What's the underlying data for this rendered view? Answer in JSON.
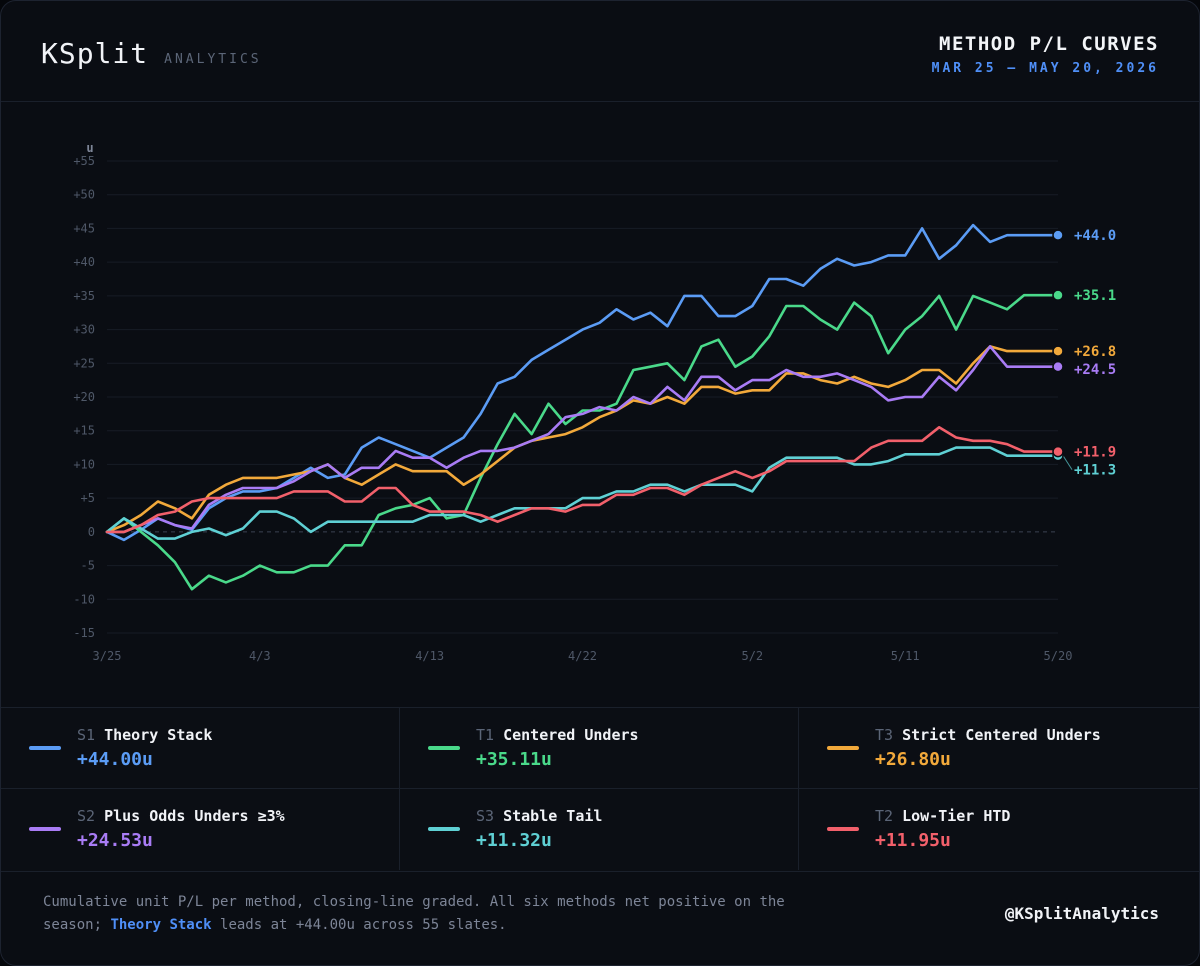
{
  "header": {
    "brand": "KSplit",
    "tagline": "ANALYTICS",
    "title": "METHOD P/L CURVES",
    "date_range": "MAR 25 — MAY 20, 2026"
  },
  "chart_data": {
    "type": "line",
    "ylabel": "u",
    "ylim": [
      -15,
      55
    ],
    "yticks": [
      -15,
      -10,
      -5,
      0,
      5,
      10,
      15,
      20,
      25,
      30,
      35,
      40,
      45,
      50,
      55
    ],
    "ytick_labels": [
      "-15",
      "-10",
      "-5",
      "0",
      "+5",
      "+10",
      "+15",
      "+20",
      "+25",
      "+30",
      "+35",
      "+40",
      "+45",
      "+50",
      "+55"
    ],
    "xticks": [
      {
        "label": "3/25",
        "index": 0
      },
      {
        "label": "4/3",
        "index": 9
      },
      {
        "label": "4/13",
        "index": 19
      },
      {
        "label": "4/22",
        "index": 28
      },
      {
        "label": "5/2",
        "index": 38
      },
      {
        "label": "5/11",
        "index": 47
      },
      {
        "label": "5/20",
        "index": 56
      }
    ],
    "x_count": 57,
    "grid": true,
    "series": [
      {
        "name": "Theory Stack",
        "code": "S1",
        "color": "#5b9cf5",
        "end_label": "+44.0",
        "total": "+44.00u",
        "values": [
          0,
          -1.2,
          0.3,
          2,
          1,
          0.3,
          3.5,
          5,
          6,
          6,
          6.5,
          8,
          9.5,
          8,
          8.5,
          12.5,
          14,
          13,
          12,
          11,
          12.5,
          14,
          17.5,
          22,
          23,
          25.5,
          27,
          28.5,
          30,
          31,
          33,
          31.5,
          32.5,
          30.5,
          35,
          35,
          32,
          32,
          33.5,
          37.5,
          37.5,
          36.5,
          39,
          40.5,
          39.5,
          40,
          41,
          41,
          45,
          40.5,
          42.5,
          45.5,
          43,
          44,
          44,
          44,
          44
        ]
      },
      {
        "name": "Centered Unders",
        "code": "T1",
        "color": "#4ad98a",
        "end_label": "+35.1",
        "total": "+35.11u",
        "values": [
          0,
          2,
          0,
          -2,
          -4.5,
          -8.5,
          -6.5,
          -7.5,
          -6.5,
          -5,
          -6,
          -6,
          -5,
          -5,
          -2,
          -2,
          2.5,
          3.5,
          4,
          5,
          2,
          2.5,
          8,
          13,
          17.5,
          14.5,
          19,
          16,
          18,
          18,
          19,
          24,
          24.5,
          25,
          22.5,
          27.5,
          28.5,
          24.5,
          26,
          29,
          33.5,
          33.5,
          31.5,
          30,
          34,
          32,
          26.5,
          30,
          32,
          35,
          30,
          35,
          34,
          33,
          35.1,
          35.1,
          35.1
        ]
      },
      {
        "name": "Strict Centered Unders",
        "code": "T3",
        "color": "#f2a93b",
        "end_label": "+26.8",
        "total": "+26.80u",
        "values": [
          0,
          1,
          2.5,
          4.5,
          3.5,
          2,
          5.5,
          7,
          8,
          8,
          8,
          8.5,
          9,
          10,
          8,
          7,
          8.5,
          10,
          9,
          9,
          9,
          7,
          8.5,
          10.5,
          12.5,
          13.5,
          14,
          14.5,
          15.5,
          17,
          18,
          19.5,
          19,
          20,
          19,
          21.5,
          21.5,
          20.5,
          21,
          21,
          23.5,
          23.5,
          22.5,
          22,
          23,
          22,
          21.5,
          22.5,
          24,
          24,
          22,
          25,
          27.5,
          26.8,
          26.8,
          26.8,
          26.8
        ]
      },
      {
        "name": "Plus Odds Unders ≥3%",
        "code": "S2",
        "color": "#a97cf5",
        "end_label": "+24.5",
        "total": "+24.53u",
        "values": [
          0,
          0,
          1,
          2,
          1,
          0.5,
          4,
          5.5,
          6.5,
          6.5,
          6.5,
          7.5,
          9,
          10,
          8,
          9.5,
          9.5,
          12,
          11,
          11,
          9.5,
          11,
          12,
          12,
          12.5,
          13.5,
          14.5,
          17,
          17.5,
          18.5,
          18,
          20,
          19,
          21.5,
          19.5,
          23,
          23,
          21,
          22.5,
          22.5,
          24,
          23,
          23,
          23.5,
          22.5,
          21.5,
          19.5,
          20,
          20,
          23,
          21,
          24,
          27.5,
          24.5,
          24.5,
          24.5,
          24.5
        ]
      },
      {
        "name": "Stable Tail",
        "code": "S3",
        "color": "#5fd0d4",
        "end_label": "+11.3",
        "total": "+11.32u",
        "values": [
          0,
          2,
          0.5,
          -1,
          -1,
          0,
          0.5,
          -0.5,
          0.5,
          3,
          3,
          2,
          0,
          1.5,
          1.5,
          1.5,
          1.5,
          1.5,
          1.5,
          2.5,
          2.5,
          2.5,
          1.5,
          2.5,
          3.5,
          3.5,
          3.5,
          3.5,
          5,
          5,
          6,
          6,
          7,
          7,
          6,
          7,
          7,
          7,
          6,
          9.5,
          11,
          11,
          11,
          11,
          10,
          10,
          10.5,
          11.5,
          11.5,
          11.5,
          12.5,
          12.5,
          12.5,
          11.3,
          11.3,
          11.3,
          11.3
        ]
      },
      {
        "name": "Low-Tier HTD",
        "code": "T2",
        "color": "#f2606b",
        "end_label": "+11.9",
        "total": "+11.95u",
        "values": [
          0,
          0,
          1,
          2.5,
          3,
          4.5,
          5,
          5,
          5,
          5,
          5,
          6,
          6,
          6,
          4.5,
          4.5,
          6.5,
          6.5,
          4,
          3,
          3,
          3,
          2.5,
          1.5,
          2.5,
          3.5,
          3.5,
          3,
          4,
          4,
          5.5,
          5.5,
          6.5,
          6.5,
          5.5,
          7,
          8,
          9,
          8,
          9,
          10.5,
          10.5,
          10.5,
          10.5,
          10.5,
          12.5,
          13.5,
          13.5,
          13.5,
          15.5,
          14,
          13.5,
          13.5,
          13,
          11.9,
          11.9,
          11.9
        ]
      }
    ]
  },
  "footer": {
    "note_a": "Cumulative unit P/L per method, closing-line graded. All six methods net positive on the season; ",
    "note_hl": "Theory Stack",
    "note_b": " leads at +44.00u across 55 slates.",
    "handle": "@KSplitAnalytics"
  }
}
